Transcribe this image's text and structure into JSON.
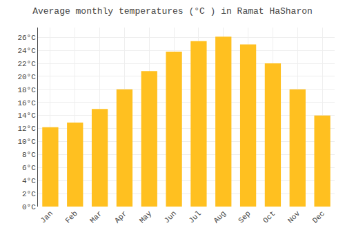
{
  "chart_data": {
    "type": "bar",
    "title": "Average monthly temperatures (°C ) in Ramat HaSharon",
    "categories": [
      "Jan",
      "Feb",
      "Mar",
      "Apr",
      "May",
      "Jun",
      "Jul",
      "Aug",
      "Sep",
      "Oct",
      "Nov",
      "Dec"
    ],
    "values": [
      12.2,
      12.9,
      15.0,
      18.0,
      20.8,
      23.8,
      25.4,
      26.1,
      24.9,
      22.0,
      18.0,
      14.0
    ],
    "color": "#FFC020",
    "ylim": [
      0,
      27.5
    ],
    "yticks": [
      {
        "value": 0,
        "label": "0°C"
      },
      {
        "value": 2,
        "label": "2°C"
      },
      {
        "value": 4,
        "label": "4°C"
      },
      {
        "value": 6,
        "label": "6°C"
      },
      {
        "value": 8,
        "label": "8°C"
      },
      {
        "value": 10,
        "label": "10°C"
      },
      {
        "value": 12,
        "label": "12°C"
      },
      {
        "value": 14,
        "label": "14°C"
      },
      {
        "value": 16,
        "label": "16°C"
      },
      {
        "value": 18,
        "label": "18°C"
      },
      {
        "value": 20,
        "label": "20°C"
      },
      {
        "value": 22,
        "label": "22°C"
      },
      {
        "value": 24,
        "label": "24°C"
      },
      {
        "value": 26,
        "label": "26°C"
      }
    ],
    "grid": true
  }
}
